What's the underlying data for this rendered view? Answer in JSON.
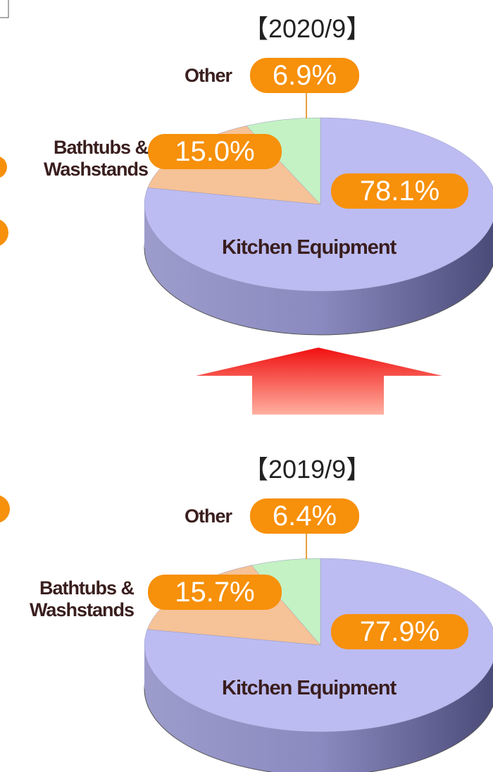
{
  "chart_data": [
    {
      "type": "pie3d",
      "title": "【2020/9】",
      "categories": [
        "Kitchen Equipment",
        "Bathtubs & Washstands",
        "Other"
      ],
      "values": [
        78.1,
        15.0,
        6.9
      ],
      "value_labels": [
        "78.1%",
        "15.0%",
        "6.9%"
      ],
      "colors": [
        "#bcbcf2",
        "#f6c297",
        "#c4f2c4"
      ]
    },
    {
      "type": "pie3d",
      "title": "【2019/9】",
      "categories": [
        "Kitchen Equipment",
        "Bathtubs & Washstands",
        "Other"
      ],
      "values": [
        77.9,
        15.7,
        6.4
      ],
      "value_labels": [
        "77.9%",
        "15.7%",
        "6.4%"
      ],
      "colors": [
        "#bcbcf2",
        "#f6c297",
        "#c4f2c4"
      ]
    }
  ]
}
